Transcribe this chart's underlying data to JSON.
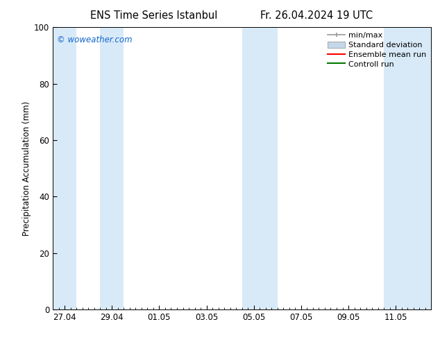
{
  "title_left": "ENS Time Series Istanbul",
  "title_right": "Fr. 26.04.2024 19 UTC",
  "ylabel": "Precipitation Accumulation (mm)",
  "ylim": [
    0,
    100
  ],
  "yticks": [
    0,
    20,
    40,
    60,
    80,
    100
  ],
  "x_tick_labels": [
    "27.04",
    "29.04",
    "01.05",
    "03.05",
    "05.05",
    "07.05",
    "09.05",
    "11.05"
  ],
  "x_tick_positions": [
    0,
    2,
    4,
    6,
    8,
    10,
    12,
    14
  ],
  "xlim": [
    -0.5,
    15.5
  ],
  "watermark": "© woweather.com",
  "watermark_color": "#1166cc",
  "background_color": "#ffffff",
  "shaded_bands": [
    {
      "xmin": -0.5,
      "xmax": 0.5,
      "color": "#d8eaf8"
    },
    {
      "xmin": 1.5,
      "xmax": 2.5,
      "color": "#d8eaf8"
    },
    {
      "xmin": 7.5,
      "xmax": 9.0,
      "color": "#d8eaf8"
    },
    {
      "xmin": 13.5,
      "xmax": 15.5,
      "color": "#d8eaf8"
    }
  ],
  "legend_items": [
    {
      "label": "min/max",
      "color": "#999999",
      "style": "minmax"
    },
    {
      "label": "Standard deviation",
      "color": "#c5d8ea",
      "style": "stddev"
    },
    {
      "label": "Ensemble mean run",
      "color": "#ff0000",
      "style": "line"
    },
    {
      "label": "Controll run",
      "color": "#007700",
      "style": "line"
    }
  ],
  "font_size": 8.5,
  "title_font_size": 10.5
}
